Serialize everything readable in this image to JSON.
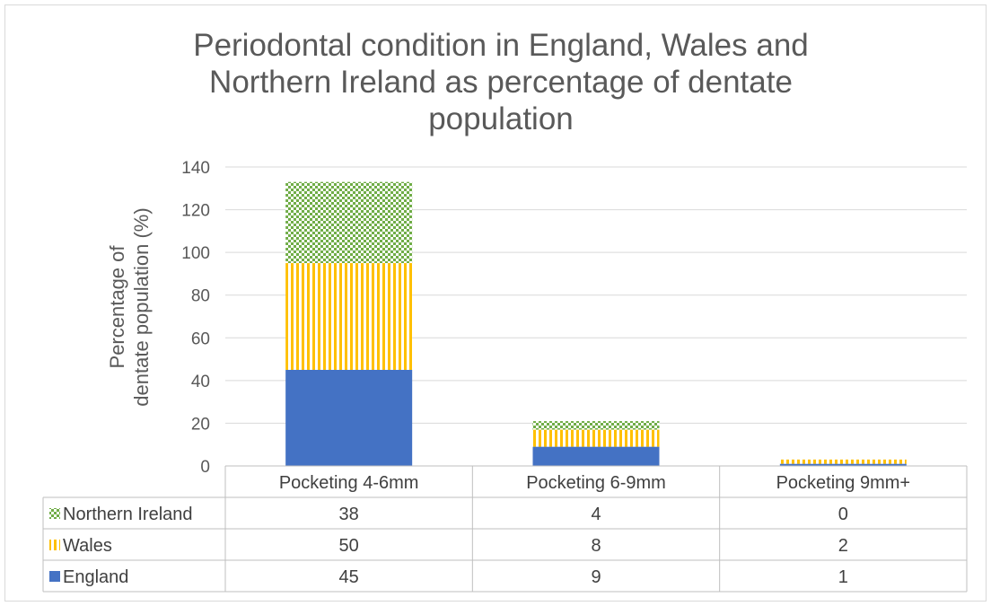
{
  "chart_data": {
    "type": "bar",
    "stacked": true,
    "title": "Periodontal condition in England, Wales and Northern Ireland as percentage of dentate population",
    "title_lines": [
      "Periodontal condition in England, Wales and",
      "Northern Ireland as percentage of dentate",
      "population"
    ],
    "ylabel": "Percentage of dentate population (%)",
    "ylabel_lines": [
      "Percentage of",
      "dentate population (%)"
    ],
    "xlabel": "",
    "categories": [
      "Pocketing 4-6mm",
      "Pocketing 6-9mm",
      "Pocketing 9mm+"
    ],
    "ylim": [
      0,
      140
    ],
    "yticks": [
      0,
      20,
      40,
      60,
      80,
      100,
      120,
      140
    ],
    "grid": true,
    "legend": "data-table",
    "series": [
      {
        "name": "England",
        "values": [
          45,
          9,
          1
        ],
        "color": "#4472C4",
        "pattern": "solid"
      },
      {
        "name": "Wales",
        "values": [
          50,
          8,
          2
        ],
        "color": "#FFC000",
        "pattern": "vertical-stripes"
      },
      {
        "name": "Northern Ireland",
        "values": [
          38,
          4,
          0
        ],
        "color": "#70AD47",
        "pattern": "checker"
      }
    ],
    "table_row_order": [
      "Northern Ireland",
      "Wales",
      "England"
    ]
  }
}
